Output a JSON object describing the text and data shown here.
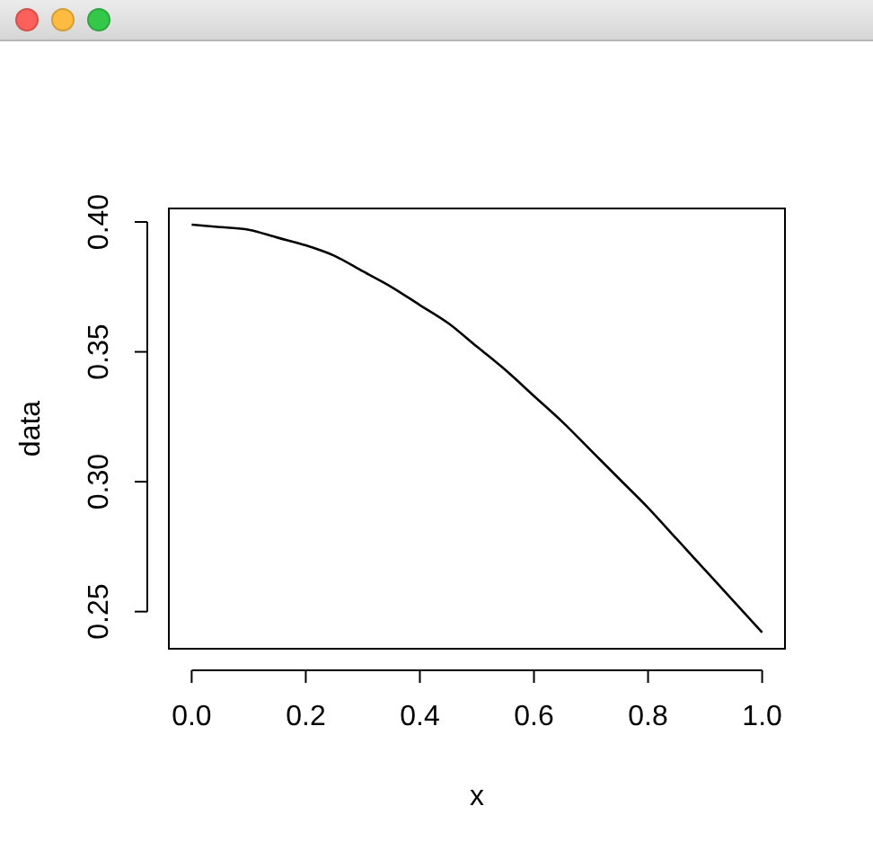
{
  "chart_data": {
    "type": "line",
    "xlabel": "x",
    "ylabel": "data",
    "x": [
      0,
      0.05,
      0.1,
      0.15,
      0.2,
      0.25,
      0.3,
      0.35,
      0.4,
      0.45,
      0.5,
      0.55,
      0.6,
      0.65,
      0.7,
      0.75,
      0.8,
      0.85,
      0.9,
      0.95,
      1.0
    ],
    "series": [
      {
        "color": "#000000",
        "values": [
          0.399,
          0.398,
          0.397,
          0.394,
          0.391,
          0.387,
          0.381,
          0.375,
          0.368,
          0.361,
          0.352,
          0.343,
          0.333,
          0.323,
          0.312,
          0.301,
          0.29,
          0.278,
          0.266,
          0.254,
          0.242
        ]
      }
    ],
    "xlim": [
      -0.04,
      1.04
    ],
    "ylim": [
      0.2357,
      0.4052
    ],
    "xticks": [
      {
        "value": 0,
        "label": "0.0"
      },
      0.2,
      0.4,
      0.6,
      0.8,
      {
        "value": 1,
        "label": "1.0"
      }
    ],
    "yticks": [
      0.25,
      {
        "value": 0.3,
        "label": "0.30"
      },
      0.35,
      {
        "value": 0.4,
        "label": "0.40"
      }
    ],
    "marker": "none",
    "line_style": "solid"
  }
}
